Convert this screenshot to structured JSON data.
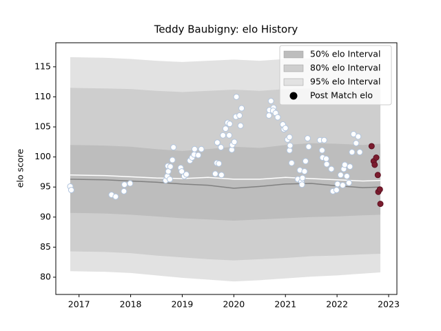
{
  "chart_data": {
    "type": "band",
    "title": "Teddy Baubigny: elo History",
    "ylabel": "elo score",
    "xlim": [
      2016.55,
      2023.16
    ],
    "ylim": [
      77.13,
      119.0
    ],
    "xticks": [
      2017,
      2018,
      2019,
      2020,
      2021,
      2022,
      2023
    ],
    "yticks": [
      80,
      85,
      90,
      95,
      100,
      105,
      110,
      115
    ],
    "legend": "upper right",
    "x": [
      2016.83,
      2017.5,
      2018,
      2018.5,
      2019,
      2019.5,
      2020,
      2020.5,
      2021,
      2021.5,
      2022,
      2022.5,
      2022.84
    ],
    "bands": [
      {
        "name": "50% elo Interval",
        "color": "#bdbdbd",
        "upper": [
          102.0,
          101.9,
          101.7,
          101.3,
          101.0,
          101.3,
          101.7,
          101.5,
          102.0,
          102.3,
          102.2,
          102.0,
          102.2
        ],
        "lower": [
          90.7,
          90.6,
          90.4,
          90.1,
          89.8,
          89.6,
          89.4,
          89.6,
          89.8,
          90.0,
          90.1,
          90.3,
          90.4
        ]
      },
      {
        "name": "80% elo Interval",
        "color": "#cecece",
        "upper": [
          111.5,
          111.4,
          111.3,
          111.0,
          110.8,
          111.0,
          111.2,
          111.0,
          111.3,
          111.4,
          111.1,
          111.3,
          111.2
        ],
        "lower": [
          84.3,
          84.2,
          84.0,
          83.6,
          83.3,
          83.0,
          82.8,
          83.0,
          83.2,
          83.5,
          83.6,
          83.8,
          83.9
        ]
      },
      {
        "name": "95% elo Interval",
        "color": "#e2e2e2",
        "upper": [
          116.6,
          116.5,
          116.3,
          116.0,
          115.8,
          116.0,
          116.2,
          116.0,
          116.3,
          116.4,
          116.1,
          116.3,
          116.2
        ],
        "lower": [
          81.0,
          80.9,
          80.7,
          80.3,
          79.9,
          79.6,
          79.3,
          79.5,
          79.8,
          80.1,
          80.3,
          80.6,
          80.8
        ]
      }
    ],
    "lines": [
      {
        "color": "#808080",
        "values": [
          96.3,
          96.2,
          96.0,
          95.8,
          95.5,
          95.3,
          94.8,
          95.1,
          95.5,
          95.6,
          95.2,
          94.9,
          95.0
        ]
      },
      {
        "color": "#ffffff",
        "values": [
          97.0,
          96.9,
          96.7,
          96.5,
          96.4,
          96.6,
          96.3,
          96.3,
          96.6,
          96.4,
          96.2,
          96.0,
          96.1
        ]
      }
    ],
    "points": {
      "name": "Post Match elo",
      "legend_color": "#000000",
      "groups": [
        {
          "color": "#ffffff",
          "edge": "#b0c4de",
          "x": [
            2016.83,
            2016.85,
            2017.63,
            2017.71,
            2017.87,
            2017.88,
            2017.99,
            2018.68,
            2018.71,
            2018.73,
            2018.72,
            2018.77,
            2018.81,
            2018.83,
            2018.76,
            2018.97,
            2018.99,
            2019.04,
            2019.08,
            2019.15,
            2019.19,
            2019.23,
            2019.24,
            2019.31,
            2019.37,
            2019.64,
            2019.67,
            2019.71,
            2019.68,
            2019.75,
            2019.76,
            2019.79,
            2019.84,
            2019.88,
            2019.92,
            2019.91,
            2019.96,
            2019.97,
            2020.01,
            2020.04,
            2020.05,
            2020.11,
            2020.13,
            2020.15,
            2020.68,
            2020.69,
            2020.72,
            2020.77,
            2020.76,
            2020.81,
            2020.85,
            2020.95,
            2020.97,
            2021.0,
            2021.04,
            2021.08,
            2021.08,
            2021.09,
            2021.12,
            2021.24,
            2021.28,
            2021.31,
            2021.32,
            2021.33,
            2021.37,
            2021.39,
            2021.43,
            2021.45,
            2021.67,
            2021.71,
            2021.72,
            2021.75,
            2021.79,
            2021.8,
            2021.89,
            2021.92,
            2021.99,
            2022.01,
            2022.07,
            2022.11,
            2022.13,
            2022.15,
            2022.19,
            2022.23,
            2022.25,
            2022.29,
            2022.32,
            2022.37,
            2022.41,
            2022.44
          ],
          "y": [
            95.1,
            94.5,
            93.7,
            93.4,
            94.3,
            95.4,
            95.6,
            96.1,
            96.8,
            97.6,
            98.5,
            98.4,
            99.5,
            101.6,
            96.3,
            98.2,
            97.6,
            96.8,
            97.1,
            99.4,
            99.9,
            100.4,
            101.3,
            100.3,
            101.3,
            97.2,
            99.0,
            98.9,
            102.4,
            101.6,
            97.0,
            103.6,
            104.7,
            105.7,
            105.5,
            103.6,
            101.2,
            102.0,
            102.5,
            106.7,
            110.0,
            106.9,
            105.2,
            108.1,
            106.9,
            107.8,
            109.3,
            108.2,
            107.7,
            107.3,
            106.6,
            105.4,
            104.6,
            104.8,
            102.9,
            103.3,
            101.1,
            101.9,
            99.0,
            96.3,
            97.8,
            95.9,
            95.4,
            96.5,
            97.6,
            99.3,
            103.1,
            101.7,
            102.8,
            101.1,
            99.9,
            102.8,
            99.7,
            98.8,
            98.0,
            94.3,
            94.5,
            95.5,
            97.0,
            95.3,
            98.0,
            98.7,
            96.8,
            95.7,
            98.4,
            100.8,
            103.8,
            102.3,
            103.4,
            100.8
          ]
        },
        {
          "color": "#7b1c2e",
          "edge": "#5b1020",
          "x": [
            2022.67,
            2022.71,
            2022.73,
            2022.76,
            2022.79,
            2022.8,
            2022.83,
            2022.84
          ],
          "y": [
            101.8,
            99.3,
            98.7,
            99.9,
            97.0,
            94.2,
            94.6,
            92.2
          ]
        }
      ]
    }
  }
}
